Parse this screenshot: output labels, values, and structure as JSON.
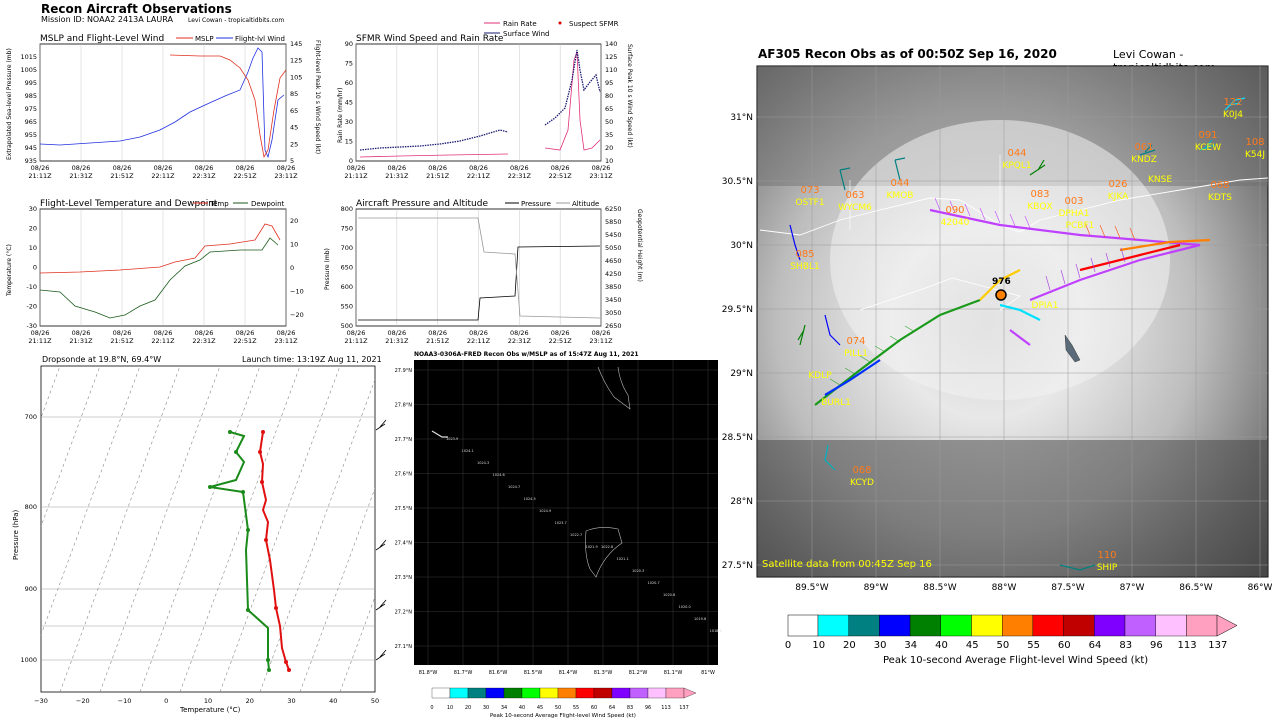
{
  "header": {
    "title": "Recon Aircraft Observations",
    "mission": "Mission ID: NOAA2 2413A LAURA",
    "credit": "Levi Cowan - tropicaltidbits.com"
  },
  "time_ticks": [
    "08/26\n21:11Z",
    "08/26\n21:31Z",
    "08/26\n21:51Z",
    "08/26\n22:11Z",
    "08/26\n22:31Z",
    "08/26\n22:51Z",
    "08/26\n23:11Z"
  ],
  "panels": {
    "mslp": {
      "title": "MSLP and Flight-Level Wind",
      "legend": [
        "MSLP",
        "Flight-lvl Wind"
      ],
      "ylabel_left": "Extrapolated Sea-level Pressure (mb)",
      "ylabel_right": "Flight-level Peak 10 s Wind Speed (kt)",
      "left_ticks": [
        "935",
        "945",
        "955",
        "965",
        "975",
        "985",
        "995",
        "1005",
        "1015"
      ],
      "right_ticks": [
        "5",
        "25",
        "45",
        "65",
        "85",
        "105",
        "125",
        "145"
      ]
    },
    "sfmr": {
      "title": "SFMR Wind Speed and Rain Rate",
      "legend": [
        "Rain Rate",
        "Suspect SFMR",
        "Surface Wind"
      ],
      "ylabel_left": "Rain Rate (mm/hr)",
      "ylabel_right": "Surface Peak 10 s Wind Speed (kt)",
      "left_ticks": [
        "0",
        "15",
        "30",
        "45",
        "60",
        "75",
        "90"
      ],
      "right_ticks": [
        "10",
        "20",
        "35",
        "50",
        "65",
        "80",
        "95",
        "110",
        "125",
        "140"
      ]
    },
    "temp": {
      "title": "Flight-Level Temperature and Dewpoint",
      "legend": [
        "Temp",
        "Dewpoint"
      ],
      "ylabel_left": "Temperature (°C)",
      "left_ticks": [
        "-30",
        "-20",
        "-10",
        "0",
        "10",
        "20",
        "30"
      ],
      "right_ticks": [
        "−20",
        "−10",
        "0",
        "10",
        "20"
      ]
    },
    "press": {
      "title": "Aircraft Pressure and Altitude",
      "legend": [
        "Pressure",
        "Altitude"
      ],
      "ylabel_left": "Pressure (mb)",
      "ylabel_right": "Geopotential Height (m)",
      "left_ticks": [
        "500",
        "550",
        "600",
        "650",
        "700",
        "750",
        "800"
      ],
      "right_ticks": [
        "2650",
        "3050",
        "3450",
        "3850",
        "4250",
        "4650",
        "5050",
        "5450",
        "5850",
        "6250"
      ]
    }
  },
  "dropsonde": {
    "title": "Dropsonde at 19.8°N, 69.4°W",
    "launch": "Launch time: 13:19Z Aug 11, 2021",
    "xlabel": "Temperature (°C)",
    "ylabel": "Pressure (hPa)",
    "xticks": [
      "−30",
      "−20",
      "−10",
      "0",
      "10",
      "20",
      "30",
      "40",
      "50"
    ],
    "yticks": [
      "700",
      "800",
      "900",
      "1000"
    ]
  },
  "fred": {
    "title": "NOAA3-0306A-FRED Recon Obs w/MSLP as of 15:47Z Aug 11, 2021",
    "credit": "Levi Cowan - tropicaltidbits.com",
    "lat_labels": [
      "27.9°N",
      "27.8°N",
      "27.7°N",
      "27.6°N",
      "27.5°N",
      "27.4°N",
      "27.3°N",
      "27.2°N",
      "27.1°N"
    ],
    "lon_labels": [
      "81.8°W",
      "81.7°W",
      "81.6°W",
      "81.5°W",
      "81.4°W",
      "81.3°W",
      "81.2°W",
      "81.1°W",
      "81°W"
    ],
    "obs": [
      "1023.9",
      "1024.1",
      "1024.3",
      "1024.6",
      "1024.7",
      "1024.5",
      "1024.9",
      "1023.7",
      "1022.7",
      "1021.9",
      "1022.8",
      "1021.1",
      "1020.3",
      "1020.7",
      "1020.6",
      "1020.0",
      "1019.6",
      "1018.9"
    ],
    "cb_ticks": [
      "0",
      "10",
      "20",
      "30",
      "34",
      "40",
      "45",
      "50",
      "55",
      "60",
      "64",
      "83",
      "96",
      "113",
      "137"
    ],
    "cb_label": "Peak 10-second Average Flight-level Wind Speed (kt)"
  },
  "main_map": {
    "title": "AF305 Recon Obs as of 00:50Z Sep 16, 2020",
    "credit": "Levi Cowan - tropicaltidbits.com",
    "lat_labels": [
      "31°N",
      "30.5°N",
      "30°N",
      "29.5°N",
      "29°N",
      "28.5°N",
      "28°N",
      "27.5°N"
    ],
    "lon_labels": [
      "89.5°W",
      "89°W",
      "88.5°W",
      "88°W",
      "87.5°W",
      "87°W",
      "86.5°W",
      "86°W"
    ],
    "center_pressure": "976",
    "satellite_note": "Satellite data from 00:45Z Sep 16",
    "stations": [
      {
        "id": "K0J4",
        "val": "122"
      },
      {
        "id": "KCEW",
        "val": "091"
      },
      {
        "id": "K54J",
        "val": "108"
      },
      {
        "id": "KNDZ",
        "val": "061"
      },
      {
        "id": "KDTS",
        "val": "068"
      },
      {
        "id": "KPQL1",
        "val": "044"
      },
      {
        "id": "KMOB",
        "val": "044"
      },
      {
        "id": "OSTF1",
        "val": "073"
      },
      {
        "id": "WYCM6",
        "val": "063"
      },
      {
        "id": "SHBL1",
        "val": "085"
      },
      {
        "id": "PILL1",
        "val": "074"
      },
      {
        "id": "KDLP",
        "val": ""
      },
      {
        "id": "BURL1",
        "val": ""
      },
      {
        "id": "KCYD",
        "val": "068"
      },
      {
        "id": "SHIP",
        "val": "110"
      },
      {
        "id": "KBQX",
        "val": "083"
      },
      {
        "id": "DPHA1",
        "val": "003"
      },
      {
        "id": "KJKA",
        "val": "026"
      },
      {
        "id": "42040",
        "val": "090"
      },
      {
        "id": "DPIA1",
        "val": ""
      },
      {
        "id": "PCBF1",
        "val": ""
      },
      {
        "id": "KNSE",
        "val": ""
      }
    ],
    "cb_ticks": [
      "0",
      "10",
      "20",
      "30",
      "34",
      "40",
      "45",
      "50",
      "55",
      "60",
      "64",
      "83",
      "96",
      "113",
      "137"
    ],
    "cb_colors": [
      "#ffffff",
      "#00ffff",
      "#008080",
      "#0000ff",
      "#008000",
      "#00ff00",
      "#ffff00",
      "#ff8000",
      "#ff0000",
      "#c00000",
      "#8000ff",
      "#c060ff",
      "#ffc0ff",
      "#ffa0c0"
    ],
    "cb_label": "Peak 10-second Average Flight-level Wind Speed (kt)"
  }
}
